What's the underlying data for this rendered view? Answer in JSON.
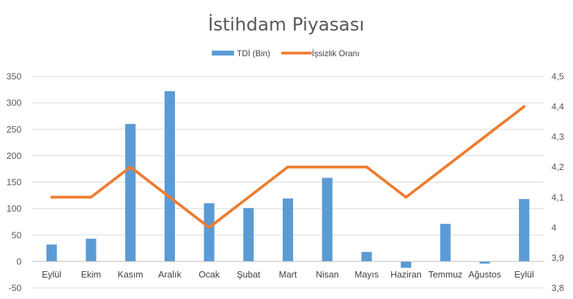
{
  "chart_data": {
    "type": "bar+line",
    "title": "İstihdam Piyasası",
    "categories": [
      "Eylül",
      "Ekim",
      "Kasım",
      "Aralık",
      "Ocak",
      "Şubat",
      "Mart",
      "Nisan",
      "Mayıs",
      "Haziran",
      "Temmuz",
      "Ağustos",
      "Eylül"
    ],
    "series": [
      {
        "name": "TDİ (Bin)",
        "kind": "bar",
        "axis": "left",
        "color": "#5b9bd5",
        "values": [
          32,
          43,
          260,
          322,
          110,
          101,
          119,
          158,
          18,
          -12,
          71,
          -4,
          118
        ]
      },
      {
        "name": "İşsizlik Oranı",
        "kind": "line",
        "axis": "right",
        "color": "#ed7d31",
        "values": [
          4.1,
          4.1,
          4.2,
          4.1,
          4.0,
          4.1,
          4.2,
          4.2,
          4.2,
          4.1,
          4.2,
          4.3,
          4.4
        ]
      }
    ],
    "y_left": {
      "min": -50,
      "max": 350,
      "step": 50,
      "ticks": [
        "-50",
        "0",
        "50",
        "100",
        "150",
        "200",
        "250",
        "300",
        "350"
      ]
    },
    "y_right": {
      "min": 3.8,
      "max": 4.5,
      "step": 0.1,
      "ticks": [
        "3,8",
        "3,9",
        "4",
        "4,1",
        "4,2",
        "4,3",
        "4,4",
        "4,5"
      ]
    },
    "legend_position": "top-center",
    "grid": true
  }
}
